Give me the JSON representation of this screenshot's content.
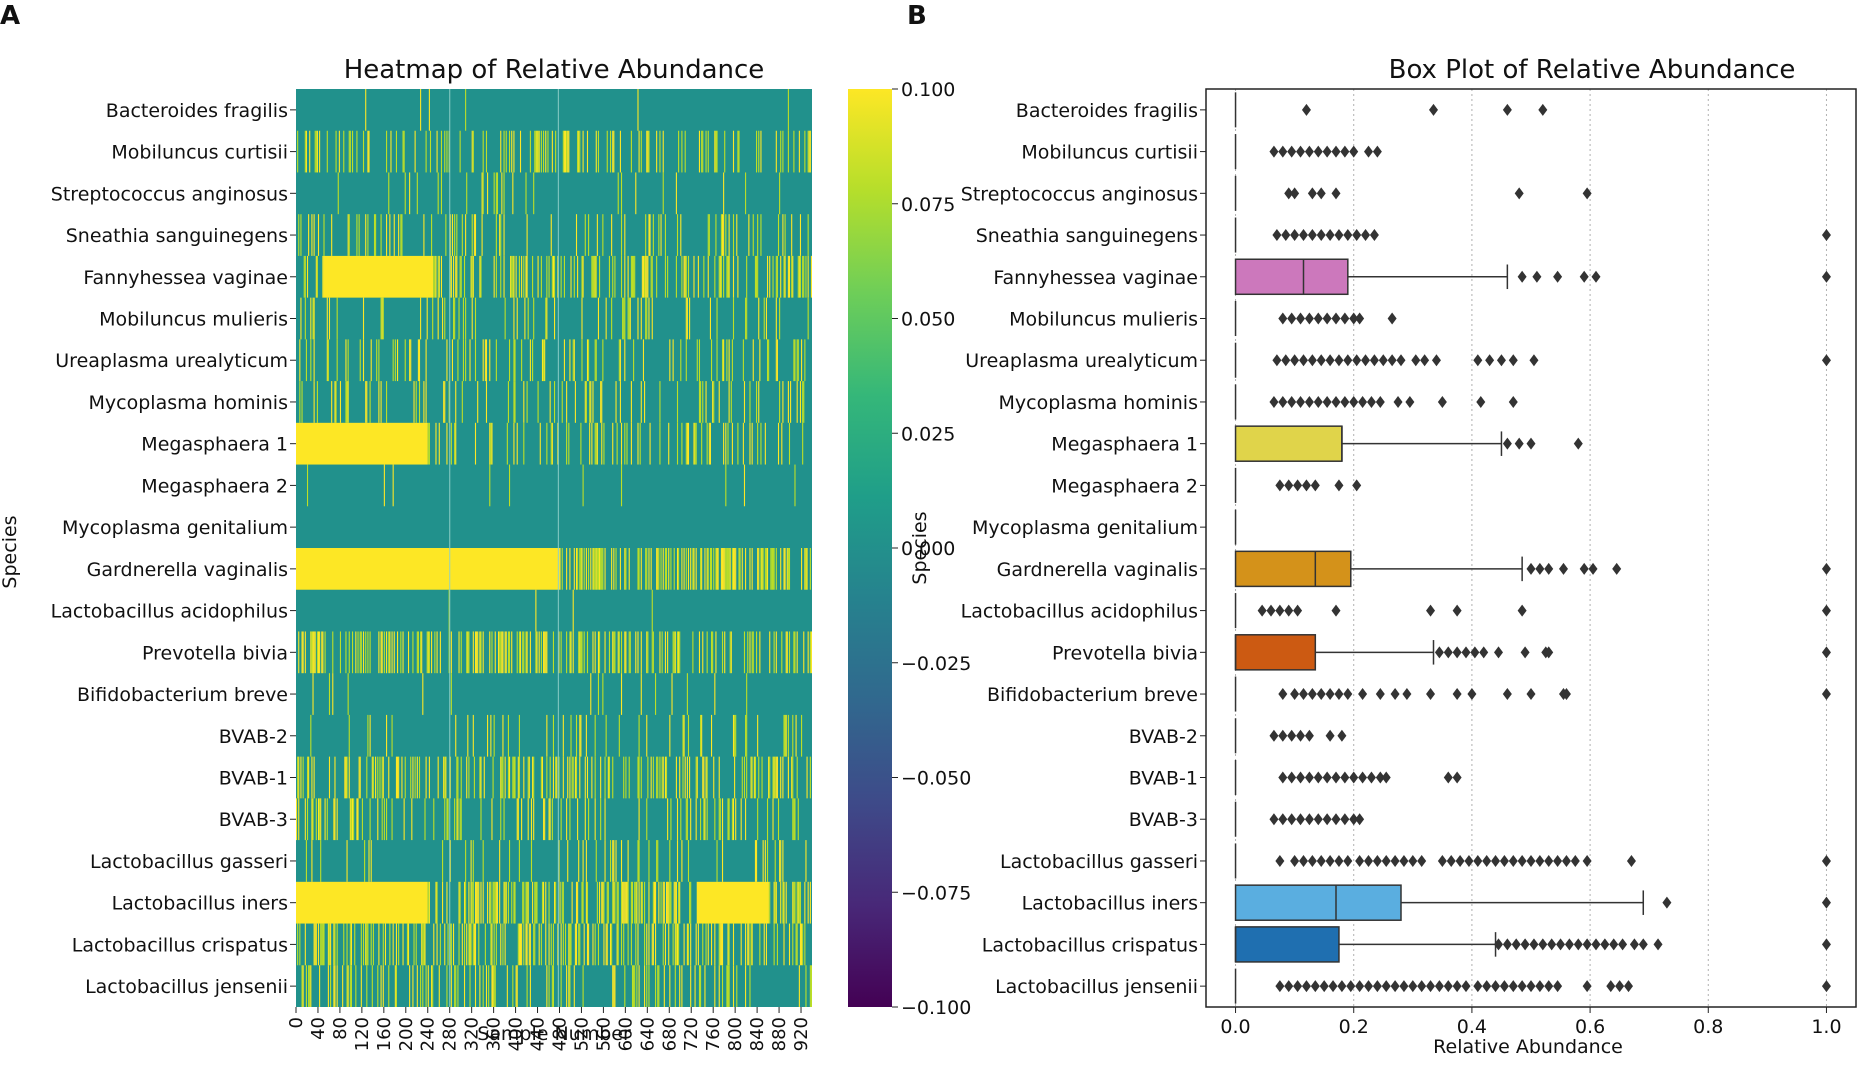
{
  "panels": {
    "a_label": "A",
    "b_label": "B"
  },
  "colors": {
    "viridis": [
      "#440154",
      "#482878",
      "#3e4a89",
      "#31688e",
      "#26828e",
      "#1f9e89",
      "#35b779",
      "#6ece58",
      "#b5de2b",
      "#fde725"
    ],
    "heat_base": "#21918c",
    "heat_light": "#bddf26",
    "heat_yellow": "#fde725",
    "box_outline": "#000000",
    "grid": "#b0b0b0"
  },
  "species": [
    "Bacteroides fragilis",
    "Mobiluncus curtisii",
    "Streptococcus anginosus",
    "Sneathia sanguinegens",
    "Fannyhessea vaginae",
    "Mobiluncus mulieris",
    "Ureaplasma urealyticum",
    "Mycoplasma hominis",
    "Megasphaera 1",
    "Megasphaera 2",
    "Mycoplasma genitalium",
    "Gardnerella vaginalis",
    "Lactobacillus acidophilus",
    "Prevotella bivia",
    "Bifidobacterium breve",
    "BVAB-2",
    "BVAB-1",
    "BVAB-3",
    "Lactobacillus gasseri",
    "Lactobacillus iners",
    "Lactobacillus crispatus",
    "Lactobacillus jensenii"
  ],
  "chart_data": [
    {
      "type": "heatmap",
      "title": "Heatmap of Relative Abundance",
      "xlabel": "Sample Number",
      "ylabel": "Species",
      "n_samples": 940,
      "x_ticks": [
        "0",
        "40",
        "80",
        "120",
        "160",
        "200",
        "240",
        "280",
        "320",
        "360",
        "400",
        "440",
        "480",
        "520",
        "560",
        "600",
        "640",
        "680",
        "720",
        "760",
        "800",
        "840",
        "880",
        "920"
      ],
      "colorbar": {
        "range": [
          -0.1,
          0.1
        ],
        "ticks": [
          "0.100",
          "0.075",
          "0.050",
          "0.025",
          "0.000",
          "−0.025",
          "−0.050",
          "−0.075",
          "−0.100"
        ]
      },
      "row_patterns": [
        {
          "species": "Bacteroides fragilis",
          "density": 0.01,
          "solid": []
        },
        {
          "species": "Mobiluncus curtisii",
          "density": 0.22,
          "solid": []
        },
        {
          "species": "Streptococcus anginosus",
          "density": 0.05,
          "solid": []
        },
        {
          "species": "Sneathia sanguinegens",
          "density": 0.14,
          "solid": []
        },
        {
          "species": "Fannyhessea vaginae",
          "density": 0.35,
          "solid": [
            [
              50,
              250
            ]
          ]
        },
        {
          "species": "Mobiluncus mulieris",
          "density": 0.14,
          "solid": []
        },
        {
          "species": "Ureaplasma urealyticum",
          "density": 0.18,
          "solid": []
        },
        {
          "species": "Mycoplasma hominis",
          "density": 0.13,
          "solid": []
        },
        {
          "species": "Megasphaera 1",
          "density": 0.2,
          "solid": [
            [
              0,
              240
            ]
          ]
        },
        {
          "species": "Megasphaera 2",
          "density": 0.02,
          "solid": []
        },
        {
          "species": "Mycoplasma genitalium",
          "density": 0.0,
          "solid": []
        },
        {
          "species": "Gardnerella vaginalis",
          "density": 0.5,
          "solid": [
            [
              0,
              480
            ]
          ]
        },
        {
          "species": "Lactobacillus acidophilus",
          "density": 0.01,
          "solid": []
        },
        {
          "species": "Prevotella bivia",
          "density": 0.4,
          "solid": []
        },
        {
          "species": "Bifidobacterium breve",
          "density": 0.04,
          "solid": []
        },
        {
          "species": "BVAB-2",
          "density": 0.08,
          "solid": []
        },
        {
          "species": "BVAB-1",
          "density": 0.3,
          "solid": []
        },
        {
          "species": "BVAB-3",
          "density": 0.2,
          "solid": []
        },
        {
          "species": "Lactobacillus gasseri",
          "density": 0.12,
          "solid": []
        },
        {
          "species": "Lactobacillus iners",
          "density": 0.45,
          "solid": [
            [
              0,
              240
            ],
            [
              730,
              860
            ]
          ]
        },
        {
          "species": "Lactobacillus crispatus",
          "density": 0.35,
          "solid": []
        },
        {
          "species": "Lactobacillus jensenii",
          "density": 0.25,
          "solid": []
        }
      ]
    },
    {
      "type": "box",
      "title": "Box Plot of Relative Abundance",
      "xlabel": "Relative Abundance",
      "ylabel": "Species",
      "xlim": [
        -0.05,
        1.05
      ],
      "x_ticks": [
        0.0,
        0.2,
        0.4,
        0.6,
        0.8,
        1.0
      ],
      "x_tick_labels": [
        "0.0",
        "0.2",
        "0.4",
        "0.6",
        "0.8",
        "1.0"
      ],
      "grid": "vertical dotted",
      "boxes": [
        {
          "species": "Bacteroides fragilis",
          "q1": 0,
          "median": 0,
          "q3": 0,
          "whisker_high": 0,
          "fliers": [
            0.12,
            0.335,
            0.46,
            0.52
          ]
        },
        {
          "species": "Mobiluncus curtisii",
          "q1": 0,
          "median": 0,
          "q3": 0,
          "whisker_high": 0,
          "fliers": [
            0.065,
            0.08,
            0.095,
            0.11,
            0.125,
            0.14,
            0.155,
            0.17,
            0.185,
            0.2,
            0.225,
            0.24
          ]
        },
        {
          "species": "Streptococcus anginosus",
          "q1": 0,
          "median": 0,
          "q3": 0,
          "whisker_high": 0,
          "fliers": [
            0.09,
            0.1,
            0.13,
            0.145,
            0.17,
            0.48,
            0.595
          ]
        },
        {
          "species": "Sneathia sanguinegens",
          "q1": 0,
          "median": 0,
          "q3": 0,
          "whisker_high": 0,
          "fliers": [
            0.07,
            0.085,
            0.1,
            0.115,
            0.13,
            0.145,
            0.16,
            0.175,
            0.19,
            0.205,
            0.22,
            0.235,
            1.0
          ]
        },
        {
          "species": "Fannyhessea vaginae",
          "q1": 0,
          "median": 0.115,
          "q3": 0.19,
          "whisker_high": 0.46,
          "color": "#cc78bc",
          "fliers": [
            0.485,
            0.51,
            0.545,
            0.59,
            0.61,
            1.0
          ]
        },
        {
          "species": "Mobiluncus mulieris",
          "q1": 0,
          "median": 0,
          "q3": 0,
          "whisker_high": 0,
          "fliers": [
            0.08,
            0.095,
            0.11,
            0.125,
            0.14,
            0.155,
            0.17,
            0.185,
            0.2,
            0.21,
            0.265
          ]
        },
        {
          "species": "Ureaplasma urealyticum",
          "q1": 0,
          "median": 0,
          "q3": 0,
          "whisker_high": 0,
          "fliers": [
            0.07,
            0.085,
            0.1,
            0.115,
            0.13,
            0.145,
            0.16,
            0.175,
            0.19,
            0.205,
            0.22,
            0.235,
            0.25,
            0.265,
            0.28,
            0.305,
            0.32,
            0.34,
            0.41,
            0.43,
            0.45,
            0.47,
            0.505,
            1.0
          ]
        },
        {
          "species": "Mycoplasma hominis",
          "q1": 0,
          "median": 0,
          "q3": 0,
          "whisker_high": 0,
          "fliers": [
            0.065,
            0.08,
            0.095,
            0.11,
            0.125,
            0.14,
            0.155,
            0.17,
            0.185,
            0.2,
            0.215,
            0.23,
            0.245,
            0.275,
            0.295,
            0.35,
            0.415,
            0.47
          ]
        },
        {
          "species": "Megasphaera 1",
          "q1": 0,
          "median": 0.18,
          "q3": 0.18,
          "whisker_high": 0.45,
          "color": "#e0d44a",
          "fliers": [
            0.46,
            0.48,
            0.5,
            0.58
          ]
        },
        {
          "species": "Megasphaera 2",
          "q1": 0,
          "median": 0,
          "q3": 0,
          "whisker_high": 0,
          "fliers": [
            0.075,
            0.09,
            0.105,
            0.12,
            0.135,
            0.175,
            0.205
          ]
        },
        {
          "species": "Mycoplasma genitalium",
          "q1": 0,
          "median": 0,
          "q3": 0,
          "whisker_high": 0,
          "fliers": []
        },
        {
          "species": "Gardnerella vaginalis",
          "q1": 0,
          "median": 0.135,
          "q3": 0.195,
          "whisker_high": 0.485,
          "color": "#d4921a",
          "fliers": [
            0.5,
            0.515,
            0.53,
            0.555,
            0.59,
            0.605,
            0.645,
            1.0
          ]
        },
        {
          "species": "Lactobacillus acidophilus",
          "q1": 0,
          "median": 0,
          "q3": 0,
          "whisker_high": 0,
          "fliers": [
            0.045,
            0.06,
            0.075,
            0.09,
            0.105,
            0.17,
            0.33,
            0.375,
            0.485,
            1.0
          ]
        },
        {
          "species": "Prevotella bivia",
          "q1": 0,
          "median": 0,
          "q3": 0.135,
          "whisker_high": 0.335,
          "color": "#cc5a12",
          "fliers": [
            0.345,
            0.36,
            0.375,
            0.39,
            0.405,
            0.42,
            0.445,
            0.49,
            0.525,
            0.53,
            1.0
          ]
        },
        {
          "species": "Bifidobacterium breve",
          "q1": 0,
          "median": 0,
          "q3": 0,
          "whisker_high": 0,
          "fliers": [
            0.08,
            0.1,
            0.115,
            0.13,
            0.145,
            0.16,
            0.175,
            0.19,
            0.215,
            0.245,
            0.27,
            0.29,
            0.33,
            0.375,
            0.4,
            0.46,
            0.5,
            0.555,
            0.56,
            1.0
          ]
        },
        {
          "species": "BVAB-2",
          "q1": 0,
          "median": 0,
          "q3": 0,
          "whisker_high": 0,
          "fliers": [
            0.065,
            0.08,
            0.095,
            0.11,
            0.125,
            0.16,
            0.18
          ]
        },
        {
          "species": "BVAB-1",
          "q1": 0,
          "median": 0,
          "q3": 0,
          "whisker_high": 0,
          "fliers": [
            0.08,
            0.095,
            0.11,
            0.125,
            0.14,
            0.155,
            0.17,
            0.185,
            0.2,
            0.215,
            0.23,
            0.245,
            0.255,
            0.36,
            0.375
          ]
        },
        {
          "species": "BVAB-3",
          "q1": 0,
          "median": 0,
          "q3": 0,
          "whisker_high": 0,
          "fliers": [
            0.065,
            0.08,
            0.095,
            0.11,
            0.125,
            0.14,
            0.155,
            0.17,
            0.185,
            0.2,
            0.21
          ]
        },
        {
          "species": "Lactobacillus gasseri",
          "q1": 0,
          "median": 0,
          "q3": 0,
          "whisker_high": 0,
          "fliers": [
            0.075,
            0.1,
            0.115,
            0.13,
            0.145,
            0.16,
            0.175,
            0.19,
            0.21,
            0.225,
            0.24,
            0.255,
            0.27,
            0.285,
            0.3,
            0.315,
            0.35,
            0.365,
            0.38,
            0.395,
            0.41,
            0.425,
            0.44,
            0.455,
            0.47,
            0.485,
            0.5,
            0.515,
            0.53,
            0.545,
            0.56,
            0.575,
            0.595,
            0.67,
            1.0
          ]
        },
        {
          "species": "Lactobacillus iners",
          "q1": 0,
          "median": 0.17,
          "q3": 0.28,
          "whisker_high": 0.69,
          "color": "#5aaee0",
          "fliers": [
            0.73,
            1.0
          ]
        },
        {
          "species": "Lactobacillus crispatus",
          "q1": 0,
          "median": 0,
          "q3": 0.175,
          "whisker_high": 0.44,
          "color": "#1f6fb0",
          "fliers": [
            0.445,
            0.46,
            0.475,
            0.49,
            0.505,
            0.52,
            0.535,
            0.55,
            0.565,
            0.58,
            0.595,
            0.61,
            0.625,
            0.64,
            0.655,
            0.675,
            0.69,
            0.715,
            1.0
          ]
        },
        {
          "species": "Lactobacillus jensenii",
          "q1": 0,
          "median": 0,
          "q3": 0,
          "whisker_high": 0,
          "fliers": [
            0.075,
            0.09,
            0.105,
            0.12,
            0.135,
            0.15,
            0.165,
            0.18,
            0.195,
            0.21,
            0.225,
            0.24,
            0.255,
            0.27,
            0.285,
            0.3,
            0.315,
            0.33,
            0.345,
            0.36,
            0.375,
            0.39,
            0.41,
            0.425,
            0.44,
            0.455,
            0.47,
            0.485,
            0.5,
            0.515,
            0.53,
            0.545,
            0.595,
            0.635,
            0.65,
            0.665,
            1.0
          ]
        }
      ]
    }
  ]
}
